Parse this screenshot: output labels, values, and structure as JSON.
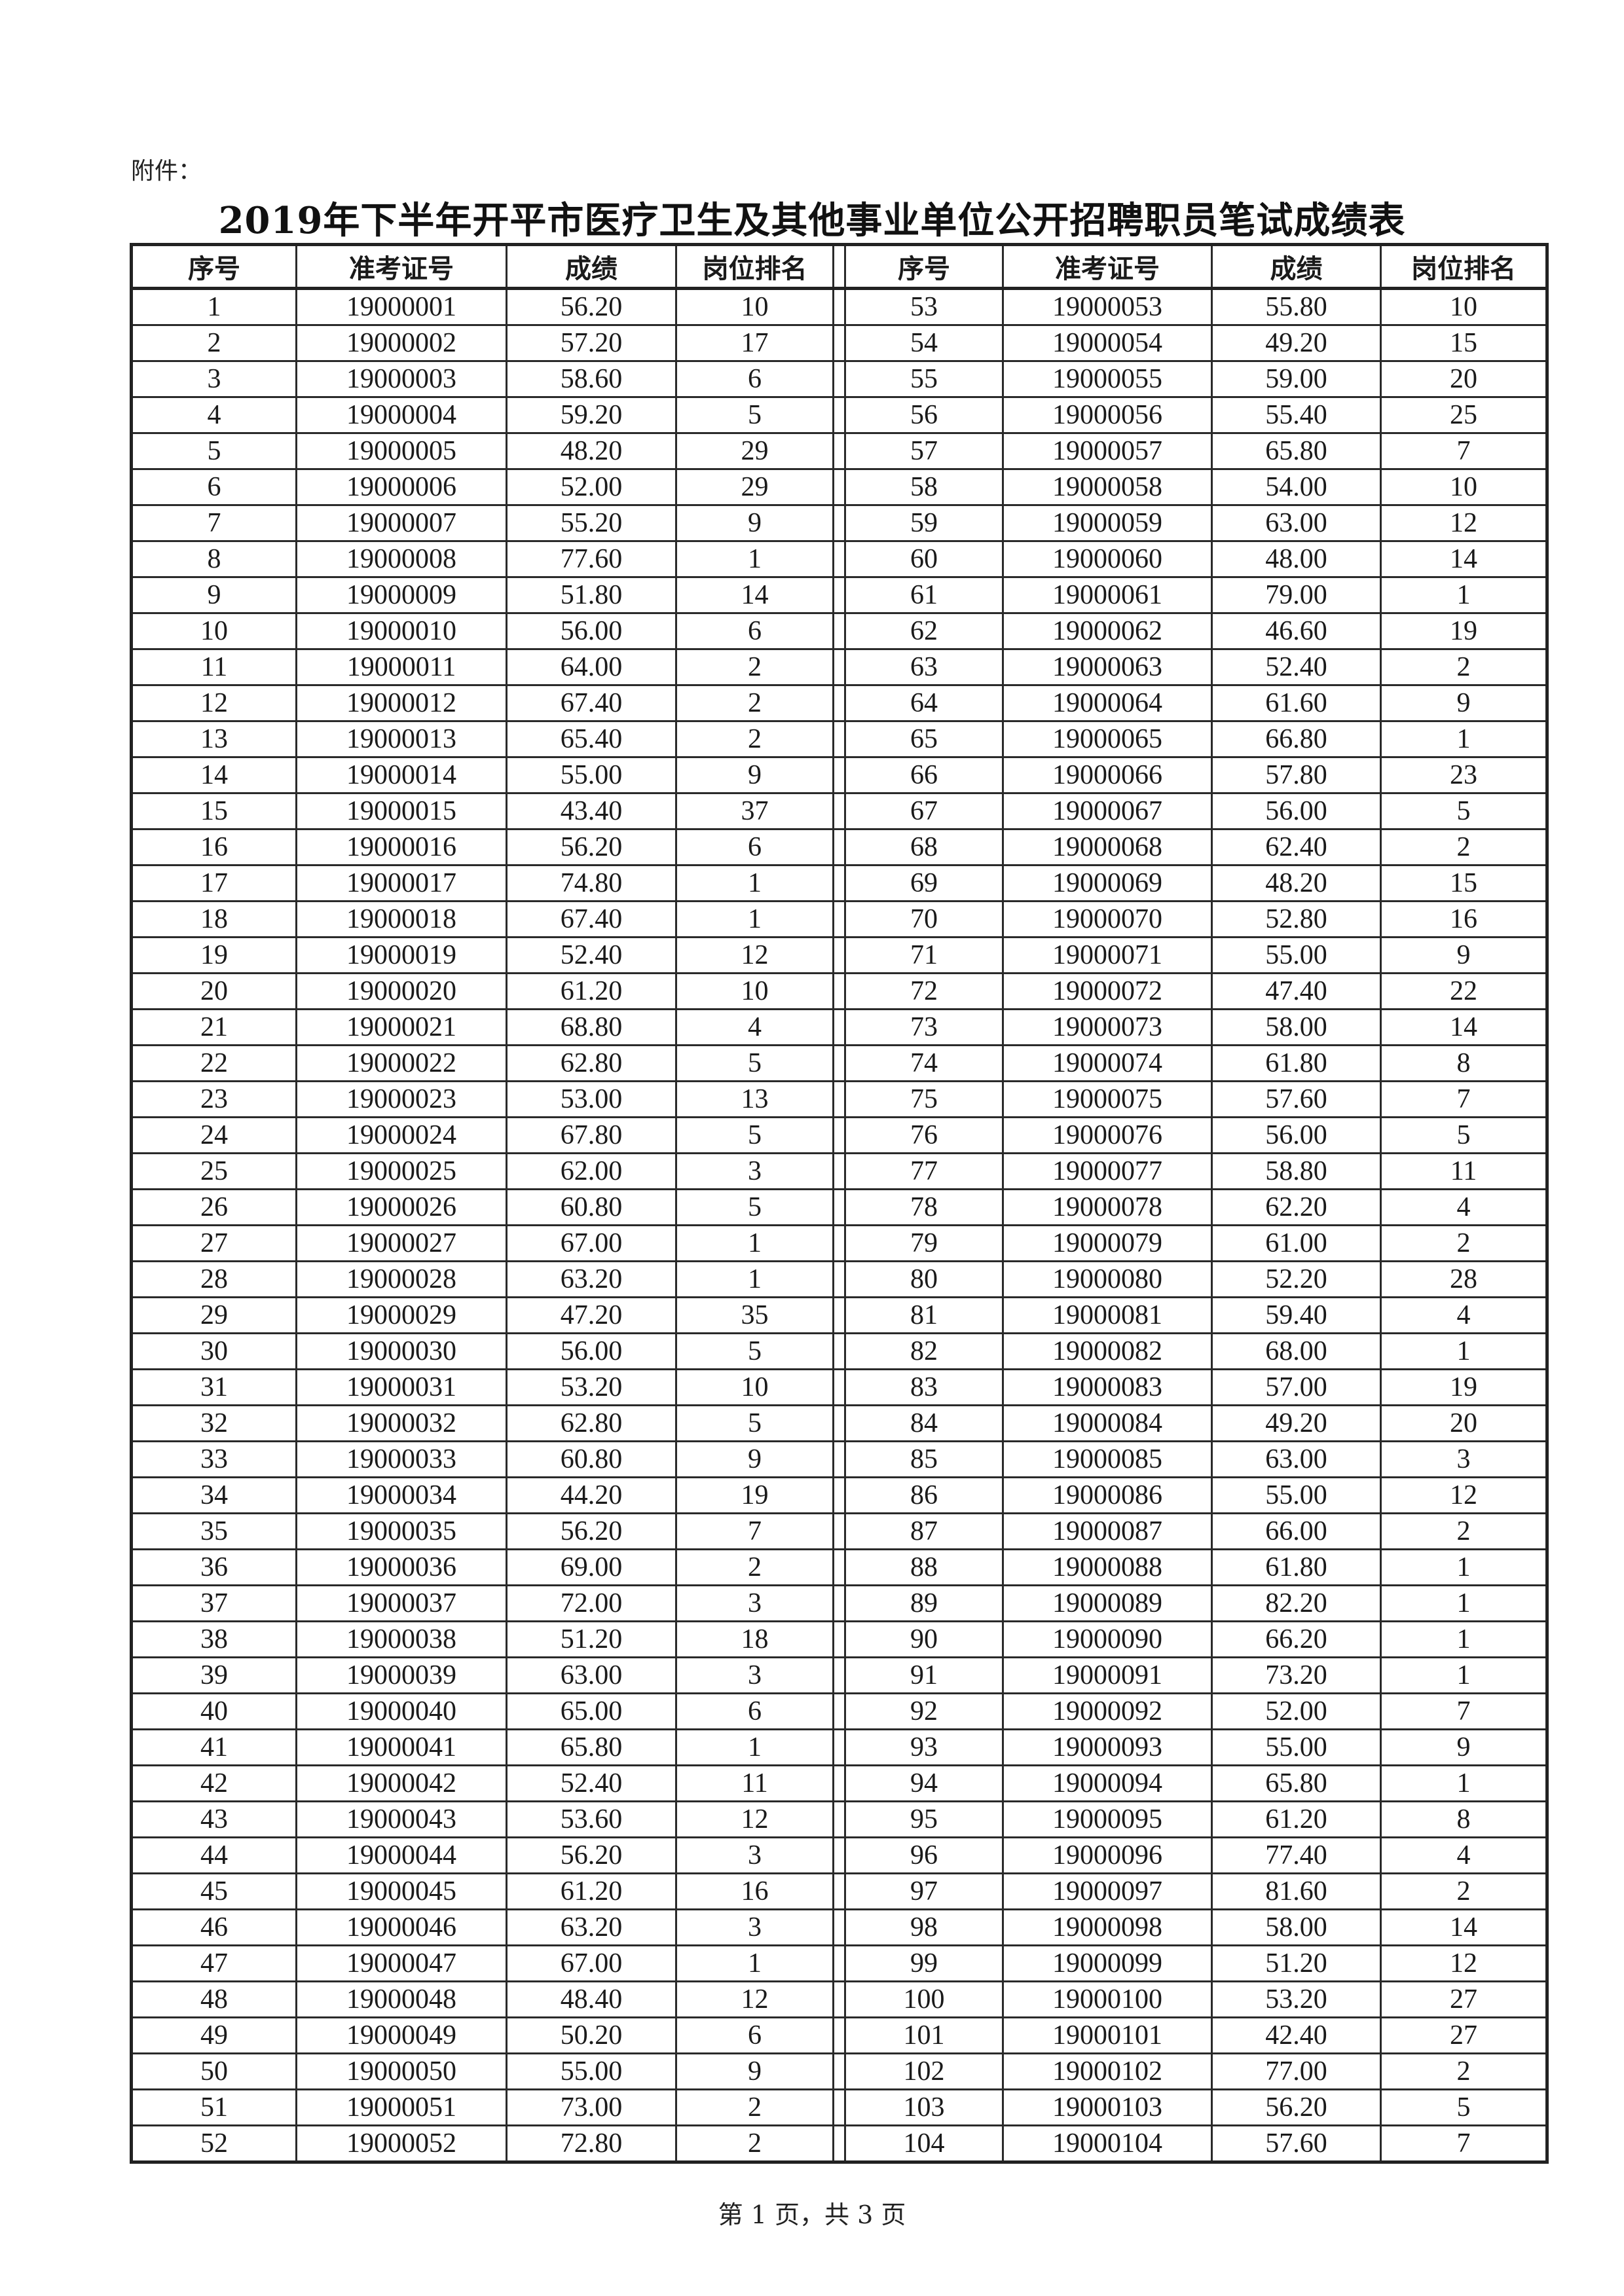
{
  "attachment_label": "附件：",
  "title": "2019年下半年开平市医疗卫生及其他事业单位公开招聘职员笔试成绩表",
  "columns": {
    "seq": "序号",
    "id": "准考证号",
    "score": "成绩",
    "rank": "岗位排名"
  },
  "rows": [
    [
      "1",
      "19000001",
      "56.20",
      "10"
    ],
    [
      "2",
      "19000002",
      "57.20",
      "17"
    ],
    [
      "3",
      "19000003",
      "58.60",
      "6"
    ],
    [
      "4",
      "19000004",
      "59.20",
      "5"
    ],
    [
      "5",
      "19000005",
      "48.20",
      "29"
    ],
    [
      "6",
      "19000006",
      "52.00",
      "29"
    ],
    [
      "7",
      "19000007",
      "55.20",
      "9"
    ],
    [
      "8",
      "19000008",
      "77.60",
      "1"
    ],
    [
      "9",
      "19000009",
      "51.80",
      "14"
    ],
    [
      "10",
      "19000010",
      "56.00",
      "6"
    ],
    [
      "11",
      "19000011",
      "64.00",
      "2"
    ],
    [
      "12",
      "19000012",
      "67.40",
      "2"
    ],
    [
      "13",
      "19000013",
      "65.40",
      "2"
    ],
    [
      "14",
      "19000014",
      "55.00",
      "9"
    ],
    [
      "15",
      "19000015",
      "43.40",
      "37"
    ],
    [
      "16",
      "19000016",
      "56.20",
      "6"
    ],
    [
      "17",
      "19000017",
      "74.80",
      "1"
    ],
    [
      "18",
      "19000018",
      "67.40",
      "1"
    ],
    [
      "19",
      "19000019",
      "52.40",
      "12"
    ],
    [
      "20",
      "19000020",
      "61.20",
      "10"
    ],
    [
      "21",
      "19000021",
      "68.80",
      "4"
    ],
    [
      "22",
      "19000022",
      "62.80",
      "5"
    ],
    [
      "23",
      "19000023",
      "53.00",
      "13"
    ],
    [
      "24",
      "19000024",
      "67.80",
      "5"
    ],
    [
      "25",
      "19000025",
      "62.00",
      "3"
    ],
    [
      "26",
      "19000026",
      "60.80",
      "5"
    ],
    [
      "27",
      "19000027",
      "67.00",
      "1"
    ],
    [
      "28",
      "19000028",
      "63.20",
      "1"
    ],
    [
      "29",
      "19000029",
      "47.20",
      "35"
    ],
    [
      "30",
      "19000030",
      "56.00",
      "5"
    ],
    [
      "31",
      "19000031",
      "53.20",
      "10"
    ],
    [
      "32",
      "19000032",
      "62.80",
      "5"
    ],
    [
      "33",
      "19000033",
      "60.80",
      "9"
    ],
    [
      "34",
      "19000034",
      "44.20",
      "19"
    ],
    [
      "35",
      "19000035",
      "56.20",
      "7"
    ],
    [
      "36",
      "19000036",
      "69.00",
      "2"
    ],
    [
      "37",
      "19000037",
      "72.00",
      "3"
    ],
    [
      "38",
      "19000038",
      "51.20",
      "18"
    ],
    [
      "39",
      "19000039",
      "63.00",
      "3"
    ],
    [
      "40",
      "19000040",
      "65.00",
      "6"
    ],
    [
      "41",
      "19000041",
      "65.80",
      "1"
    ],
    [
      "42",
      "19000042",
      "52.40",
      "11"
    ],
    [
      "43",
      "19000043",
      "53.60",
      "12"
    ],
    [
      "44",
      "19000044",
      "56.20",
      "3"
    ],
    [
      "45",
      "19000045",
      "61.20",
      "16"
    ],
    [
      "46",
      "19000046",
      "63.20",
      "3"
    ],
    [
      "47",
      "19000047",
      "67.00",
      "1"
    ],
    [
      "48",
      "19000048",
      "48.40",
      "12"
    ],
    [
      "49",
      "19000049",
      "50.20",
      "6"
    ],
    [
      "50",
      "19000050",
      "55.00",
      "9"
    ],
    [
      "51",
      "19000051",
      "73.00",
      "2"
    ],
    [
      "52",
      "19000052",
      "72.80",
      "2"
    ],
    [
      "53",
      "19000053",
      "55.80",
      "10"
    ],
    [
      "54",
      "19000054",
      "49.20",
      "15"
    ],
    [
      "55",
      "19000055",
      "59.00",
      "20"
    ],
    [
      "56",
      "19000056",
      "55.40",
      "25"
    ],
    [
      "57",
      "19000057",
      "65.80",
      "7"
    ],
    [
      "58",
      "19000058",
      "54.00",
      "10"
    ],
    [
      "59",
      "19000059",
      "63.00",
      "12"
    ],
    [
      "60",
      "19000060",
      "48.00",
      "14"
    ],
    [
      "61",
      "19000061",
      "79.00",
      "1"
    ],
    [
      "62",
      "19000062",
      "46.60",
      "19"
    ],
    [
      "63",
      "19000063",
      "52.40",
      "2"
    ],
    [
      "64",
      "19000064",
      "61.60",
      "9"
    ],
    [
      "65",
      "19000065",
      "66.80",
      "1"
    ],
    [
      "66",
      "19000066",
      "57.80",
      "23"
    ],
    [
      "67",
      "19000067",
      "56.00",
      "5"
    ],
    [
      "68",
      "19000068",
      "62.40",
      "2"
    ],
    [
      "69",
      "19000069",
      "48.20",
      "15"
    ],
    [
      "70",
      "19000070",
      "52.80",
      "16"
    ],
    [
      "71",
      "19000071",
      "55.00",
      "9"
    ],
    [
      "72",
      "19000072",
      "47.40",
      "22"
    ],
    [
      "73",
      "19000073",
      "58.00",
      "14"
    ],
    [
      "74",
      "19000074",
      "61.80",
      "8"
    ],
    [
      "75",
      "19000075",
      "57.60",
      "7"
    ],
    [
      "76",
      "19000076",
      "56.00",
      "5"
    ],
    [
      "77",
      "19000077",
      "58.80",
      "11"
    ],
    [
      "78",
      "19000078",
      "62.20",
      "4"
    ],
    [
      "79",
      "19000079",
      "61.00",
      "2"
    ],
    [
      "80",
      "19000080",
      "52.20",
      "28"
    ],
    [
      "81",
      "19000081",
      "59.40",
      "4"
    ],
    [
      "82",
      "19000082",
      "68.00",
      "1"
    ],
    [
      "83",
      "19000083",
      "57.00",
      "19"
    ],
    [
      "84",
      "19000084",
      "49.20",
      "20"
    ],
    [
      "85",
      "19000085",
      "63.00",
      "3"
    ],
    [
      "86",
      "19000086",
      "55.00",
      "12"
    ],
    [
      "87",
      "19000087",
      "66.00",
      "2"
    ],
    [
      "88",
      "19000088",
      "61.80",
      "1"
    ],
    [
      "89",
      "19000089",
      "82.20",
      "1"
    ],
    [
      "90",
      "19000090",
      "66.20",
      "1"
    ],
    [
      "91",
      "19000091",
      "73.20",
      "1"
    ],
    [
      "92",
      "19000092",
      "52.00",
      "7"
    ],
    [
      "93",
      "19000093",
      "55.00",
      "9"
    ],
    [
      "94",
      "19000094",
      "65.80",
      "1"
    ],
    [
      "95",
      "19000095",
      "61.20",
      "8"
    ],
    [
      "96",
      "19000096",
      "77.40",
      "4"
    ],
    [
      "97",
      "19000097",
      "81.60",
      "2"
    ],
    [
      "98",
      "19000098",
      "58.00",
      "14"
    ],
    [
      "99",
      "19000099",
      "51.20",
      "12"
    ],
    [
      "100",
      "19000100",
      "53.20",
      "27"
    ],
    [
      "101",
      "19000101",
      "42.40",
      "27"
    ],
    [
      "102",
      "19000102",
      "77.00",
      "2"
    ],
    [
      "103",
      "19000103",
      "56.20",
      "5"
    ],
    [
      "104",
      "19000104",
      "57.60",
      "7"
    ]
  ],
  "footer": "第 1 页，共 3 页"
}
